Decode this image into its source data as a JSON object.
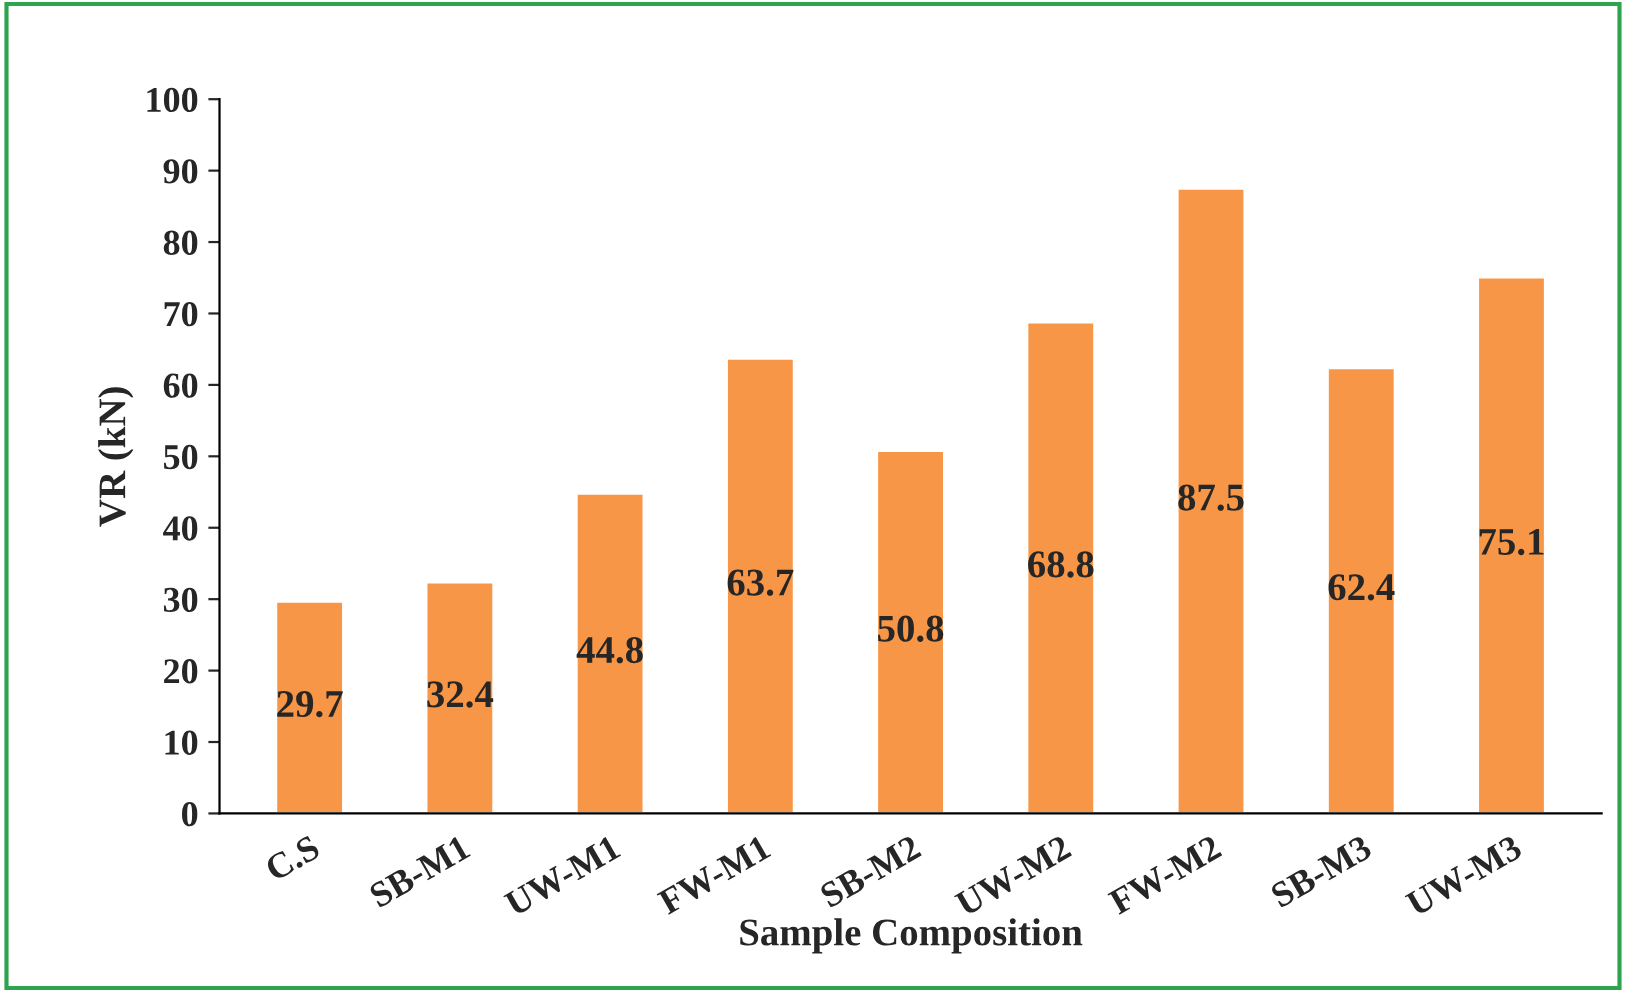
{
  "chart_data": {
    "type": "bar",
    "xlabel": "Sample Composition",
    "ylabel": "VR (kN)",
    "categories": [
      "C.S",
      "SB-M1",
      "UW-M1",
      "FW-M1",
      "SB-M2",
      "UW-M2",
      "FW-M2",
      "SB-M3",
      "UW-M3"
    ],
    "values": [
      29.7,
      32.4,
      44.8,
      63.7,
      50.8,
      68.8,
      87.5,
      62.4,
      75.1
    ],
    "color": "#f79646",
    "ylim": [
      0,
      100
    ],
    "yticks": [
      0,
      10,
      20,
      30,
      40,
      50,
      60,
      70,
      80,
      90,
      100
    ],
    "data_labels": true,
    "grid": false,
    "legend": false
  }
}
